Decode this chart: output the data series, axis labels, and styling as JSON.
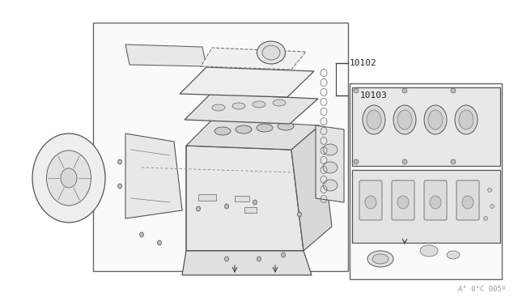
{
  "bg_color": "#ffffff",
  "fig_width": 6.4,
  "fig_height": 3.72,
  "dpi": 100,
  "label_10102": "10102",
  "label_10103": "10103",
  "watermark": "A° 0°C 005º",
  "outer_bg": "#f5f5f0",
  "line_color": "#555555",
  "dark_line": "#333333",
  "part_fill": "#e8e8e8",
  "part_fill2": "#f0f0f0"
}
